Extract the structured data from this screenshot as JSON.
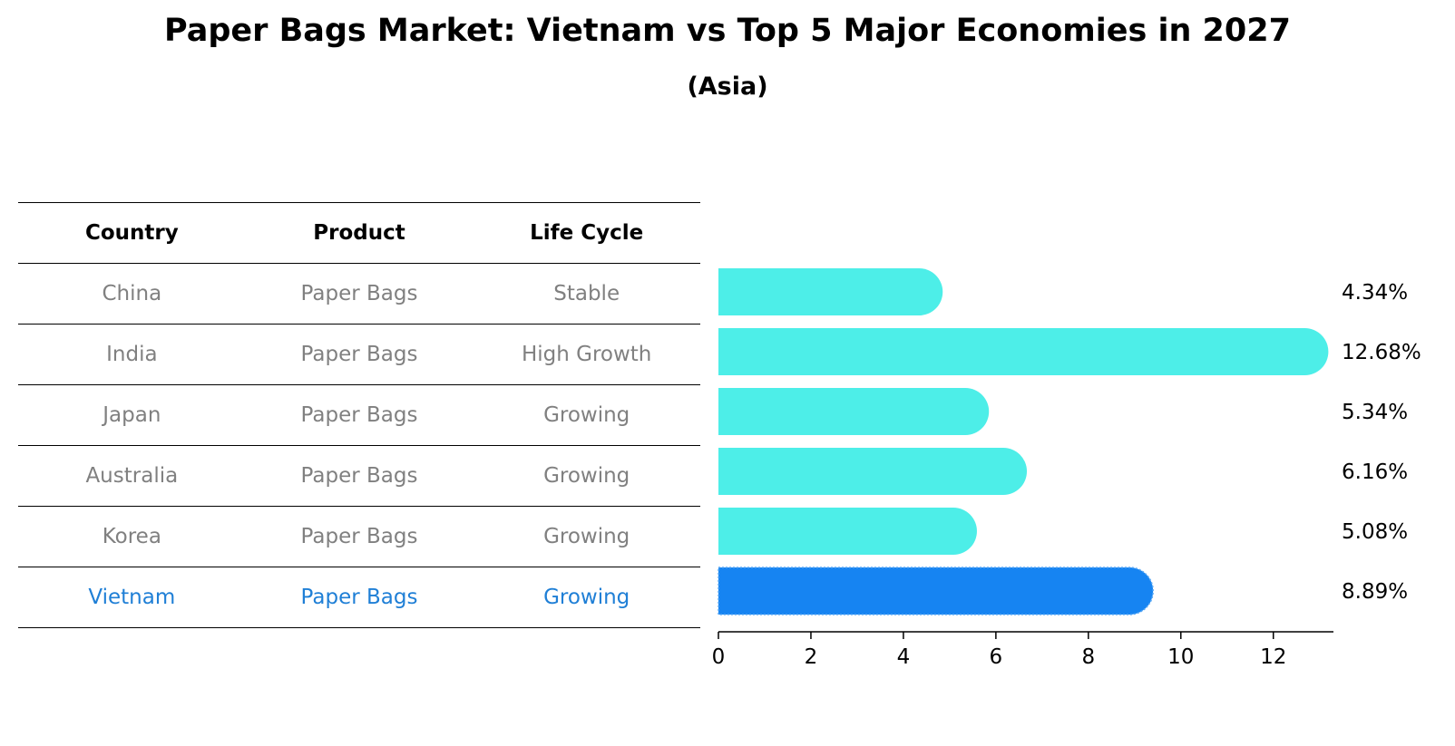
{
  "title": "Paper Bags Market: Vietnam vs Top 5 Major Economies in 2027",
  "subtitle": "(Asia)",
  "table": {
    "headers": [
      "Country",
      "Product",
      "Life Cycle"
    ],
    "rows": [
      [
        "China",
        "Paper Bags",
        "Stable"
      ],
      [
        "India",
        "Paper Bags",
        "High Growth"
      ],
      [
        "Japan",
        "Paper Bags",
        "Growing"
      ],
      [
        "Australia",
        "Paper Bags",
        "Growing"
      ],
      [
        "Korea",
        "Paper Bags",
        "Growing"
      ],
      [
        "Vietnam",
        "Paper Bags",
        "Growing"
      ]
    ],
    "highlight_row": 5
  },
  "colors": {
    "bar": "#4deee8",
    "highlight_bar": "#1684f2",
    "highlight_text": "#1f7fd6",
    "muted_text": "#808080"
  },
  "chart_data": {
    "type": "bar",
    "orientation": "horizontal",
    "categories": [
      "China",
      "India",
      "Japan",
      "Australia",
      "Korea",
      "Vietnam"
    ],
    "values": [
      4.34,
      12.68,
      5.34,
      6.16,
      5.08,
      8.89
    ],
    "value_labels": [
      "4.34%",
      "12.68%",
      "5.34%",
      "6.16%",
      "5.08%",
      "8.89%"
    ],
    "highlight_index": 5,
    "xlim": [
      0,
      13.3
    ],
    "xticks": [
      0,
      2,
      4,
      6,
      8,
      10,
      12
    ],
    "grid": false
  }
}
